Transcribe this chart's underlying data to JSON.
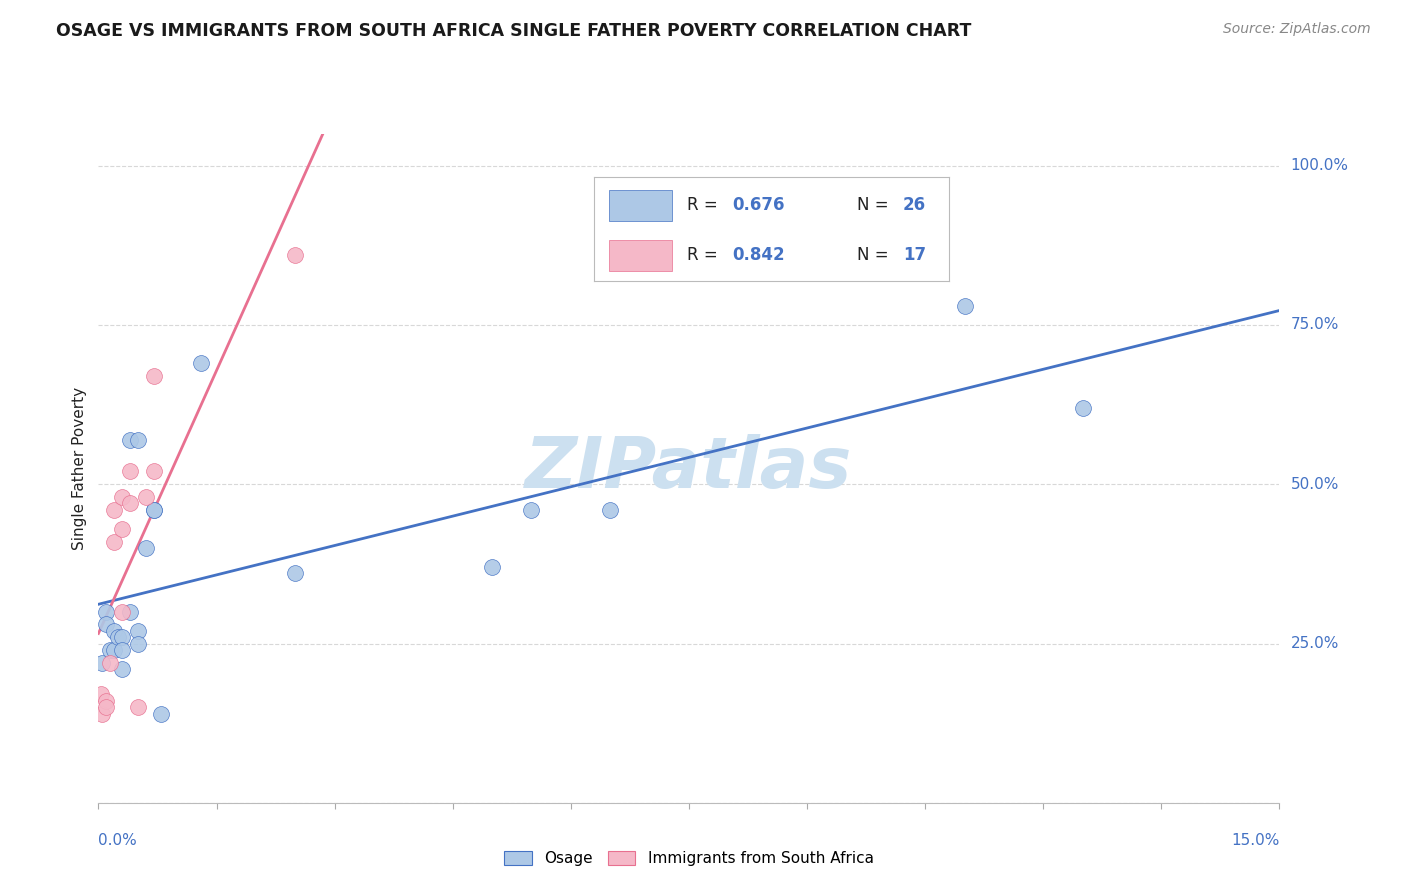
{
  "title": "OSAGE VS IMMIGRANTS FROM SOUTH AFRICA SINGLE FATHER POVERTY CORRELATION CHART",
  "source": "Source: ZipAtlas.com",
  "ylabel": "Single Father Poverty",
  "osage_color": "#adc8e6",
  "sa_color": "#f5b8c8",
  "osage_line_color": "#4472c4",
  "sa_line_color": "#e87090",
  "background_color": "#ffffff",
  "grid_color": "#d8d8d8",
  "title_color": "#1a1a1a",
  "source_color": "#888888",
  "label_color": "#4472c4",
  "text_color": "#222222",
  "watermark_color": "#cce0f0",
  "xlim": [
    0.0,
    0.15
  ],
  "ylim": [
    0.0,
    1.05
  ],
  "osage_x": [
    0.0005,
    0.001,
    0.001,
    0.0015,
    0.002,
    0.002,
    0.0025,
    0.003,
    0.003,
    0.003,
    0.004,
    0.004,
    0.005,
    0.005,
    0.005,
    0.006,
    0.007,
    0.007,
    0.008,
    0.013,
    0.025,
    0.05,
    0.055,
    0.065,
    0.11,
    0.125
  ],
  "osage_y": [
    0.22,
    0.3,
    0.28,
    0.24,
    0.27,
    0.24,
    0.26,
    0.26,
    0.24,
    0.21,
    0.3,
    0.57,
    0.57,
    0.27,
    0.25,
    0.4,
    0.46,
    0.46,
    0.14,
    0.69,
    0.36,
    0.37,
    0.46,
    0.46,
    0.78,
    0.62
  ],
  "sa_x": [
    0.0003,
    0.0005,
    0.001,
    0.001,
    0.0015,
    0.002,
    0.002,
    0.003,
    0.003,
    0.003,
    0.004,
    0.004,
    0.005,
    0.006,
    0.007,
    0.007,
    0.025
  ],
  "sa_y": [
    0.17,
    0.14,
    0.16,
    0.15,
    0.22,
    0.46,
    0.41,
    0.3,
    0.48,
    0.43,
    0.52,
    0.47,
    0.15,
    0.48,
    0.67,
    0.52,
    0.86
  ],
  "legend_R_osage": "0.676",
  "legend_N_osage": "26",
  "legend_R_sa": "0.842",
  "legend_N_sa": "17"
}
